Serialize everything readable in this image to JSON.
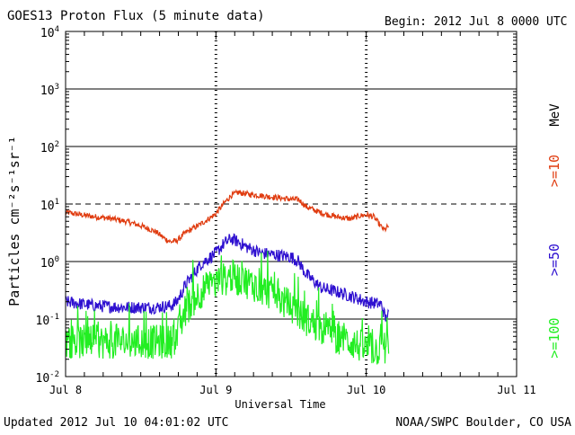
{
  "header": {
    "title": "GOES13 Proton Flux (5 minute data)",
    "begin": "Begin: 2012 Jul 8 0000 UTC"
  },
  "footer": {
    "updated": "Updated 2012 Jul 10 04:01:02 UTC",
    "source": "NOAA/SWPC Boulder, CO USA"
  },
  "colors": {
    "ge10": "#e03c10",
    "ge50": "#2e10d0",
    "ge100": "#22ee22",
    "axis": "#000000"
  },
  "chart_data": {
    "type": "line",
    "title": "GOES13 Proton Flux (5 minute data)",
    "xlabel": "Universal Time",
    "ylabel": "Particles cm⁻²s⁻¹sr⁻¹",
    "yscale": "log",
    "ylim": [
      0.01,
      10000
    ],
    "xlim": [
      0,
      3
    ],
    "x_unit": "days since 2012 Jul 8 0000 UTC",
    "xticks": [
      {
        "x": 0,
        "label": "Jul 8"
      },
      {
        "x": 1,
        "label": "Jul 9"
      },
      {
        "x": 2,
        "label": "Jul 10"
      },
      {
        "x": 3,
        "label": "Jul 11"
      }
    ],
    "yticks": [
      {
        "v": 0.01,
        "base": "10",
        "exp": "-2"
      },
      {
        "v": 0.1,
        "base": "10",
        "exp": "-1"
      },
      {
        "v": 1,
        "base": "10",
        "exp": "0"
      },
      {
        "v": 10,
        "base": "10",
        "exp": "1"
      },
      {
        "v": 100,
        "base": "10",
        "exp": "2"
      },
      {
        "v": 1000,
        "base": "10",
        "exp": "3"
      },
      {
        "v": 10000,
        "base": "10",
        "exp": "4"
      }
    ],
    "solid_gridlines": [
      0.1,
      1,
      100,
      1000
    ],
    "dashed_threshold": 10,
    "unit_label": "MeV",
    "series": [
      {
        "name": ">=10",
        "color": "#e03c10",
        "jitter": 0.05,
        "points": [
          [
            0,
            7.2
          ],
          [
            0.1,
            6.5
          ],
          [
            0.2,
            6
          ],
          [
            0.3,
            5.6
          ],
          [
            0.4,
            5
          ],
          [
            0.5,
            4.2
          ],
          [
            0.6,
            3.3
          ],
          [
            0.66,
            2.5
          ],
          [
            0.7,
            2.2
          ],
          [
            0.74,
            2.3
          ],
          [
            0.8,
            3.2
          ],
          [
            0.9,
            4.5
          ],
          [
            0.95,
            5.5
          ],
          [
            1.0,
            6.8
          ],
          [
            1.05,
            10
          ],
          [
            1.1,
            14
          ],
          [
            1.15,
            16
          ],
          [
            1.2,
            15
          ],
          [
            1.3,
            14
          ],
          [
            1.4,
            13
          ],
          [
            1.5,
            12
          ],
          [
            1.55,
            12
          ],
          [
            1.6,
            9
          ],
          [
            1.7,
            7
          ],
          [
            1.8,
            6
          ],
          [
            1.9,
            5.5
          ],
          [
            1.95,
            6.2
          ],
          [
            2.0,
            6.5
          ],
          [
            2.05,
            6
          ],
          [
            2.1,
            4
          ],
          [
            2.12,
            3.5
          ],
          [
            2.15,
            4.2
          ]
        ]
      },
      {
        "name": ">=50",
        "color": "#2e10d0",
        "jitter": 0.11,
        "points": [
          [
            0,
            0.2
          ],
          [
            0.2,
            0.17
          ],
          [
            0.4,
            0.16
          ],
          [
            0.6,
            0.16
          ],
          [
            0.7,
            0.17
          ],
          [
            0.74,
            0.2
          ],
          [
            0.8,
            0.4
          ],
          [
            0.9,
            0.9
          ],
          [
            1.0,
            1.4
          ],
          [
            1.05,
            2
          ],
          [
            1.1,
            2.5
          ],
          [
            1.15,
            2.2
          ],
          [
            1.2,
            1.8
          ],
          [
            1.3,
            1.4
          ],
          [
            1.4,
            1.3
          ],
          [
            1.5,
            1.2
          ],
          [
            1.55,
            1.0
          ],
          [
            1.6,
            0.6
          ],
          [
            1.7,
            0.35
          ],
          [
            1.8,
            0.3
          ],
          [
            1.9,
            0.25
          ],
          [
            2.0,
            0.2
          ],
          [
            2.1,
            0.18
          ],
          [
            2.13,
            0.1
          ],
          [
            2.15,
            0.12
          ]
        ]
      },
      {
        "name": ">=100",
        "color": "#22ee22",
        "jitter": 0.3,
        "points": [
          [
            0,
            0.04
          ],
          [
            0.2,
            0.04
          ],
          [
            0.4,
            0.04
          ],
          [
            0.6,
            0.04
          ],
          [
            0.7,
            0.04
          ],
          [
            0.74,
            0.05
          ],
          [
            0.8,
            0.15
          ],
          [
            0.9,
            0.3
          ],
          [
            1.0,
            0.42
          ],
          [
            1.1,
            0.55
          ],
          [
            1.2,
            0.45
          ],
          [
            1.3,
            0.35
          ],
          [
            1.4,
            0.25
          ],
          [
            1.5,
            0.16
          ],
          [
            1.6,
            0.1
          ],
          [
            1.7,
            0.07
          ],
          [
            1.8,
            0.05
          ],
          [
            1.9,
            0.04
          ],
          [
            2.0,
            0.03
          ],
          [
            2.1,
            0.03
          ],
          [
            2.15,
            0.035
          ]
        ]
      }
    ]
  }
}
